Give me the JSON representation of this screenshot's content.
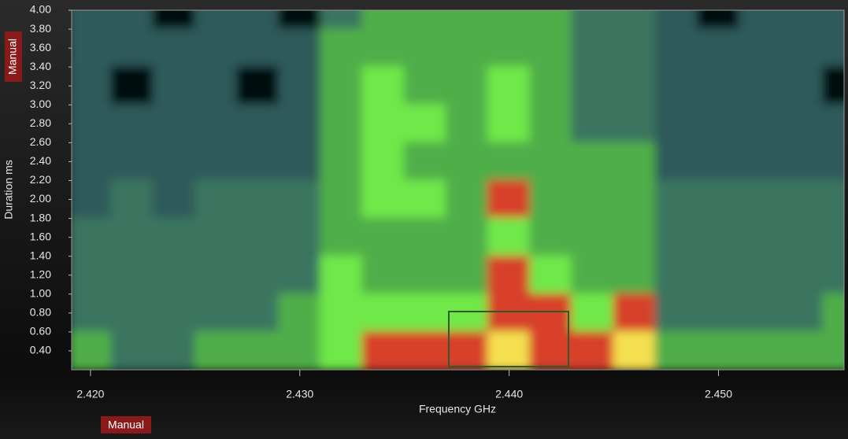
{
  "chart_data": {
    "type": "heatmap",
    "x_label": "Frequency GHz",
    "y_label": "Duration ms",
    "x_mode_label": "Manual",
    "y_mode_label": "Manual",
    "xlim": [
      2.4191,
      2.456
    ],
    "ylim": [
      0.2,
      4.0
    ],
    "xticks": [
      {
        "value": 2.42,
        "label": "2.420"
      },
      {
        "value": 2.43,
        "label": "2.430"
      },
      {
        "value": 2.44,
        "label": "2.440"
      },
      {
        "value": 2.45,
        "label": "2.450"
      }
    ],
    "yticks": [
      {
        "value": 0.4,
        "label": "0.40"
      },
      {
        "value": 0.6,
        "label": "0.60"
      },
      {
        "value": 0.8,
        "label": "0.80"
      },
      {
        "value": 1.0,
        "label": "1.00"
      },
      {
        "value": 1.2,
        "label": "1.20"
      },
      {
        "value": 1.4,
        "label": "1.40"
      },
      {
        "value": 1.6,
        "label": "1.60"
      },
      {
        "value": 1.8,
        "label": "1.80"
      },
      {
        "value": 2.0,
        "label": "2.00"
      },
      {
        "value": 2.2,
        "label": "2.20"
      },
      {
        "value": 2.4,
        "label": "2.40"
      },
      {
        "value": 2.6,
        "label": "2.60"
      },
      {
        "value": 2.8,
        "label": "2.80"
      },
      {
        "value": 3.0,
        "label": "3.00"
      },
      {
        "value": 3.2,
        "label": "3.20"
      },
      {
        "value": 3.4,
        "label": "3.40"
      },
      {
        "value": 3.6,
        "label": "3.60"
      },
      {
        "value": 3.8,
        "label": "3.80"
      },
      {
        "value": 4.0,
        "label": "4.00"
      }
    ],
    "x": [
      2.42,
      2.422,
      2.424,
      2.426,
      2.428,
      2.43,
      2.432,
      2.434,
      2.436,
      2.438,
      2.44,
      2.442,
      2.444,
      2.446,
      2.448,
      2.45,
      2.452,
      2.454,
      2.456
    ],
    "y": [
      4.0,
      3.6,
      3.2,
      2.8,
      2.4,
      2.0,
      1.6,
      1.2,
      0.8,
      0.4
    ],
    "z": [
      [
        1,
        1,
        0,
        1,
        1,
        0,
        2,
        3,
        3,
        3,
        3,
        3,
        2,
        2,
        1,
        0,
        1,
        1,
        1
      ],
      [
        1,
        1,
        1,
        1,
        1,
        1,
        3,
        3,
        3,
        3,
        3,
        3,
        2,
        2,
        1,
        1,
        1,
        1,
        1
      ],
      [
        1,
        0,
        1,
        1,
        0,
        1,
        3,
        4,
        3,
        3,
        4,
        3,
        2,
        2,
        1,
        1,
        1,
        1,
        0
      ],
      [
        1,
        1,
        1,
        1,
        1,
        1,
        3,
        4,
        4,
        3,
        4,
        3,
        2,
        2,
        1,
        1,
        1,
        1,
        1
      ],
      [
        1,
        1,
        1,
        1,
        1,
        1,
        3,
        4,
        3,
        3,
        3,
        3,
        3,
        3,
        1,
        1,
        1,
        1,
        1
      ],
      [
        1,
        2,
        1,
        2,
        2,
        2,
        3,
        4,
        4,
        3,
        5,
        3,
        3,
        3,
        2,
        2,
        2,
        2,
        2
      ],
      [
        2,
        2,
        2,
        2,
        2,
        2,
        3,
        3,
        3,
        3,
        4,
        3,
        3,
        3,
        2,
        2,
        2,
        2,
        2
      ],
      [
        2,
        2,
        2,
        2,
        2,
        2,
        4,
        3,
        3,
        3,
        5,
        4,
        3,
        3,
        2,
        2,
        2,
        2,
        2
      ],
      [
        2,
        2,
        2,
        2,
        2,
        3,
        4,
        4,
        4,
        4,
        5,
        5,
        4,
        5,
        2,
        2,
        2,
        2,
        3
      ],
      [
        3,
        2,
        2,
        3,
        3,
        3,
        4,
        5,
        5,
        5,
        6,
        5,
        5,
        6,
        3,
        3,
        3,
        3,
        3
      ]
    ],
    "colormap": [
      "#050a0a",
      "#2f5a5a",
      "#3b7560",
      "#4fae4a",
      "#6fe84a",
      "#d8402a",
      "#f5e050"
    ]
  }
}
